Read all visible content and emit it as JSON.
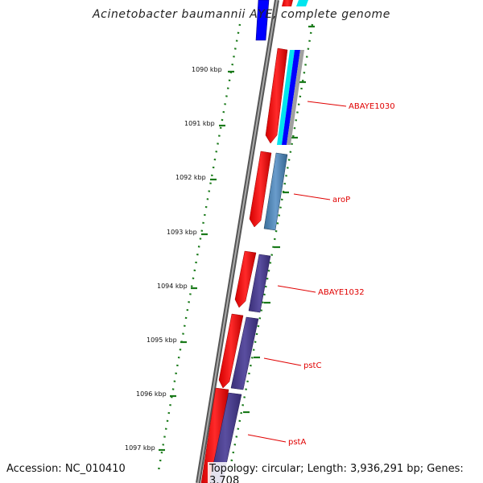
{
  "title": "Acinetobacter baumannii AYE, complete genome",
  "footer": {
    "accession": "Accession: NC_010410",
    "summary": "Topology: circular; Length: 3,936,291 bp; Genes: 3,708"
  },
  "scale": {
    "labels": [
      "1090 kbp",
      "1091 kbp",
      "1092 kbp",
      "1093 kbp",
      "1094 kbp",
      "1095 kbp",
      "1096 kbp",
      "1097 kbp"
    ]
  },
  "genes": [
    {
      "name": "ABAYE1030"
    },
    {
      "name": "aroP"
    },
    {
      "name": "ABAYE1032"
    },
    {
      "name": "pstC"
    },
    {
      "name": "pstA"
    }
  ],
  "colors": {
    "cds_red": "#ff0000",
    "blue": "#0000ff",
    "cyan": "#00e5ee",
    "steelblue": "#4682b4",
    "slateblue": "#483d8b",
    "backbone": "#777777",
    "ticks": "#006400",
    "label_red": "#e00000"
  }
}
